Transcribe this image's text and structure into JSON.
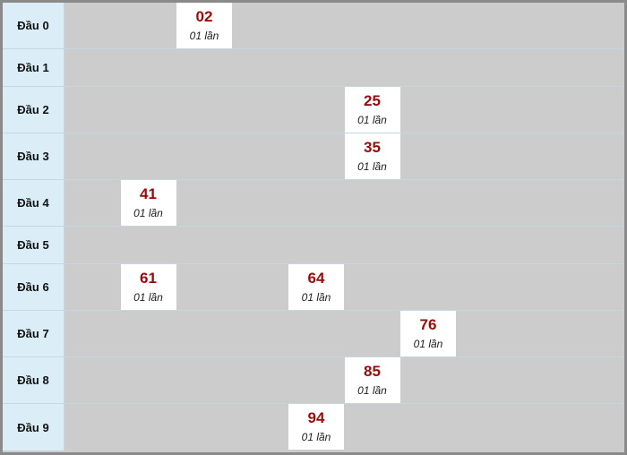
{
  "rows": [
    {
      "label": "Đầu 0",
      "items": [
        {
          "number": "02",
          "count": "01 lần"
        }
      ]
    },
    {
      "label": "Đầu 1",
      "items": []
    },
    {
      "label": "Đầu 2",
      "items": [
        {
          "number": "25",
          "count": "01 lần"
        }
      ]
    },
    {
      "label": "Đầu 3",
      "items": [
        {
          "number": "35",
          "count": "01 lần"
        }
      ]
    },
    {
      "label": "Đầu 4",
      "items": [
        {
          "number": "41",
          "count": "01 lần"
        }
      ]
    },
    {
      "label": "Đầu 5",
      "items": []
    },
    {
      "label": "Đầu 6",
      "items": [
        {
          "number": "61",
          "count": "01 lần"
        },
        {
          "number": "64",
          "count": "01 lần"
        }
      ]
    },
    {
      "label": "Đầu 7",
      "items": [
        {
          "number": "76",
          "count": "01 lần"
        }
      ]
    },
    {
      "label": "Đầu 8",
      "items": [
        {
          "number": "85",
          "count": "01 lần"
        }
      ]
    },
    {
      "label": "Đầu 9",
      "items": [
        {
          "number": "94",
          "count": "01 lần"
        }
      ]
    }
  ]
}
